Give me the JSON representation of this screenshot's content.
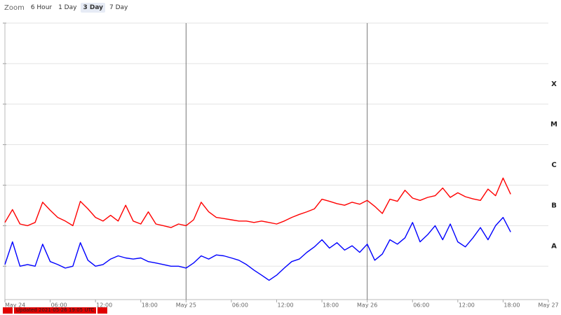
{
  "toolbar": {
    "label": "Zoom",
    "buttons": [
      "6 Hour",
      "1 Day",
      "3 Day",
      "7 Day"
    ],
    "selected": 2
  },
  "footer": {
    "text": "Updated 2021-05-26 19:05 UTC"
  },
  "chart_data": {
    "type": "line",
    "log_scale": true,
    "grid": true,
    "xlim": [
      "2021-05-24T00:00",
      "2021-05-27T00:00"
    ],
    "xticks": [
      {
        "value": "2021-05-24T00:00",
        "label": "May 24"
      },
      {
        "value": "2021-05-24T06:00",
        "label": "06:00"
      },
      {
        "value": "2021-05-24T12:00",
        "label": "12:00"
      },
      {
        "value": "2021-05-24T18:00",
        "label": "18:00"
      },
      {
        "value": "2021-05-25T00:00",
        "label": "May 25"
      },
      {
        "value": "2021-05-25T06:00",
        "label": "06:00"
      },
      {
        "value": "2021-05-25T12:00",
        "label": "12:00"
      },
      {
        "value": "2021-05-25T18:00",
        "label": "18:00"
      },
      {
        "value": "2021-05-26T00:00",
        "label": "May 26"
      },
      {
        "value": "2021-05-26T06:00",
        "label": "06:00"
      },
      {
        "value": "2021-05-26T12:00",
        "label": "12:00"
      },
      {
        "value": "2021-05-26T18:00",
        "label": "18:00"
      },
      {
        "value": "2021-05-27T00:00",
        "label": "May 27"
      }
    ],
    "ylim": [
      1.5e-09,
      0.01
    ],
    "yticks": [
      1e-08,
      1e-07,
      1e-06,
      1e-05,
      0.0001,
      0.001,
      0.01
    ],
    "class_labels": [
      "A",
      "B",
      "C",
      "M",
      "X"
    ],
    "x": [
      "2021-05-24T00:00",
      "2021-05-24T01:00",
      "2021-05-24T02:00",
      "2021-05-24T03:00",
      "2021-05-24T04:00",
      "2021-05-24T05:00",
      "2021-05-24T06:00",
      "2021-05-24T07:00",
      "2021-05-24T08:00",
      "2021-05-24T09:00",
      "2021-05-24T10:00",
      "2021-05-24T11:00",
      "2021-05-24T12:00",
      "2021-05-24T13:00",
      "2021-05-24T14:00",
      "2021-05-24T15:00",
      "2021-05-24T16:00",
      "2021-05-24T17:00",
      "2021-05-24T18:00",
      "2021-05-24T19:00",
      "2021-05-24T20:00",
      "2021-05-24T21:00",
      "2021-05-24T22:00",
      "2021-05-24T23:00",
      "2021-05-25T00:00",
      "2021-05-25T01:00",
      "2021-05-25T02:00",
      "2021-05-25T03:00",
      "2021-05-25T04:00",
      "2021-05-25T05:00",
      "2021-05-25T06:00",
      "2021-05-25T07:00",
      "2021-05-25T08:00",
      "2021-05-25T09:00",
      "2021-05-25T10:00",
      "2021-05-25T11:00",
      "2021-05-25T12:00",
      "2021-05-25T13:00",
      "2021-05-25T14:00",
      "2021-05-25T15:00",
      "2021-05-25T16:00",
      "2021-05-25T17:00",
      "2021-05-25T18:00",
      "2021-05-25T19:00",
      "2021-05-25T20:00",
      "2021-05-25T21:00",
      "2021-05-25T22:00",
      "2021-05-25T23:00",
      "2021-05-26T00:00",
      "2021-05-26T01:00",
      "2021-05-26T02:00",
      "2021-05-26T03:00",
      "2021-05-26T04:00",
      "2021-05-26T05:00",
      "2021-05-26T06:00",
      "2021-05-26T07:00",
      "2021-05-26T08:00",
      "2021-05-26T09:00",
      "2021-05-26T10:00",
      "2021-05-26T11:00",
      "2021-05-26T12:00",
      "2021-05-26T13:00",
      "2021-05-26T14:00",
      "2021-05-26T15:00",
      "2021-05-26T16:00",
      "2021-05-26T17:00",
      "2021-05-26T18:00",
      "2021-05-26T19:00"
    ],
    "series": [
      {
        "color": "#ff0000",
        "values": [
          1.2e-07,
          2.5e-07,
          1.1e-07,
          1e-07,
          1.2e-07,
          3.8e-07,
          2.4e-07,
          1.6e-07,
          1.3e-07,
          1e-07,
          4e-07,
          2.6e-07,
          1.6e-07,
          1.3e-07,
          1.8e-07,
          1.3e-07,
          3.2e-07,
          1.3e-07,
          1.1e-07,
          2.2e-07,
          1.1e-07,
          1e-07,
          9e-08,
          1.1e-07,
          1e-07,
          1.4e-07,
          3.8e-07,
          2.2e-07,
          1.6e-07,
          1.5e-07,
          1.4e-07,
          1.3e-07,
          1.3e-07,
          1.2e-07,
          1.3e-07,
          1.2e-07,
          1.1e-07,
          1.3e-07,
          1.6e-07,
          1.9e-07,
          2.2e-07,
          2.6e-07,
          4.5e-07,
          4e-07,
          3.5e-07,
          3.2e-07,
          3.8e-07,
          3.4e-07,
          4.2e-07,
          3e-07,
          2e-07,
          4.5e-07,
          4e-07,
          7.5e-07,
          4.8e-07,
          4.2e-07,
          5e-07,
          5.5e-07,
          8.5e-07,
          5e-07,
          6.5e-07,
          5.2e-07,
          4.6e-07,
          4.2e-07,
          8e-07,
          5.5e-07,
          1.5e-06,
          6e-07
        ]
      },
      {
        "color": "#0000ff",
        "values": [
          1.1e-08,
          4e-08,
          1e-08,
          1.1e-08,
          1e-08,
          3.5e-08,
          1.3e-08,
          1.1e-08,
          9e-09,
          1e-08,
          3.8e-08,
          1.4e-08,
          1e-08,
          1.1e-08,
          1.5e-08,
          1.8e-08,
          1.6e-08,
          1.5e-08,
          1.6e-08,
          1.3e-08,
          1.2e-08,
          1.1e-08,
          1e-08,
          1e-08,
          9e-09,
          1.2e-08,
          1.8e-08,
          1.5e-08,
          1.9e-08,
          1.8e-08,
          1.6e-08,
          1.4e-08,
          1.1e-08,
          8e-09,
          6e-09,
          4.5e-09,
          6e-09,
          9e-09,
          1.3e-08,
          1.5e-08,
          2.2e-08,
          3e-08,
          4.5e-08,
          2.8e-08,
          3.8e-08,
          2.5e-08,
          3.2e-08,
          2.2e-08,
          3.5e-08,
          1.4e-08,
          2e-08,
          4.5e-08,
          3.5e-08,
          5e-08,
          1.2e-07,
          4e-08,
          6e-08,
          1e-07,
          4.5e-08,
          1.1e-07,
          4e-08,
          3e-08,
          5e-08,
          9e-08,
          4.5e-08,
          1e-07,
          1.6e-07,
          7e-08
        ]
      }
    ]
  }
}
